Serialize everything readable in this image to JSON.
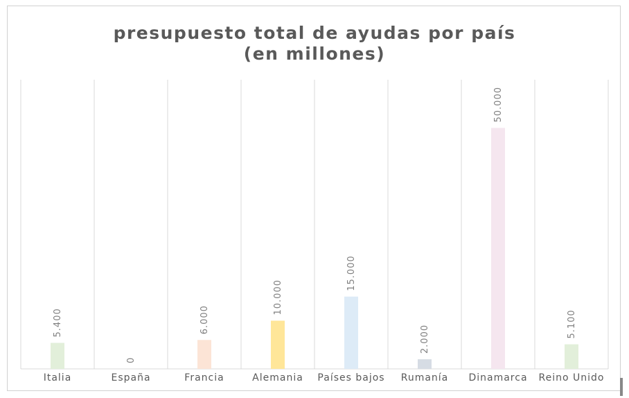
{
  "chart_data": {
    "type": "bar",
    "title_lines": [
      "presupuesto total de ayudas por país",
      "(en millones)"
    ],
    "categories": [
      "Italia",
      "España",
      "Francia",
      "Alemania",
      "Países bajos",
      "Rumanía",
      "Dinamarca",
      "Reino Unido"
    ],
    "values": [
      5400,
      0,
      6000,
      10000,
      15000,
      2000,
      50000,
      5100
    ],
    "data_labels": [
      "5.400",
      "0",
      "6.000",
      "10.000",
      "15.000",
      "2.000",
      "50.000",
      "5.100"
    ],
    "colors": [
      "#e2efda",
      "#ffffff",
      "#fce4d6",
      "#ffe699",
      "#ddebf7",
      "#d6dce4",
      "#f5e6ef",
      "#e2efda"
    ],
    "ylim": [
      0,
      60000
    ],
    "grid": "vertical category separators",
    "legend": "none"
  }
}
